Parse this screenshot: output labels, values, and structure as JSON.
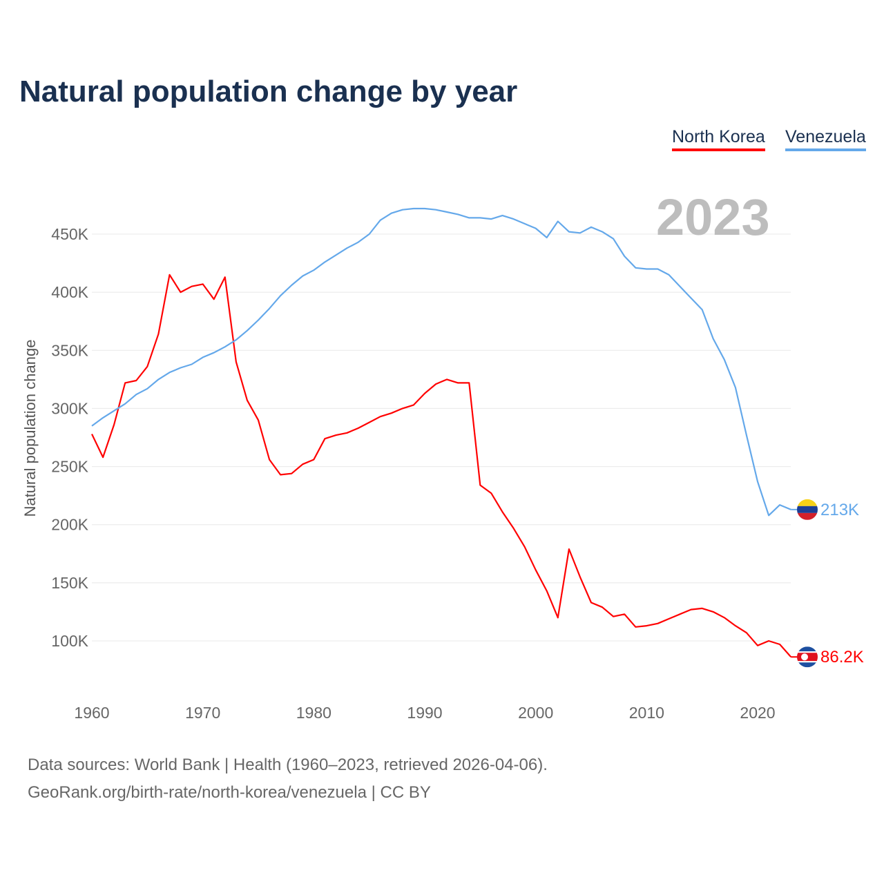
{
  "chart_data": {
    "type": "line",
    "title": "Natural population change by year",
    "xlabel": "",
    "ylabel": "Natural population change",
    "highlight_year": "2023",
    "xlim": [
      1960,
      2023
    ],
    "ylim": [
      60000,
      480000
    ],
    "grid": true,
    "legend_position": "top-right",
    "x_ticks": [
      1960,
      1970,
      1980,
      1990,
      2000,
      2010,
      2020
    ],
    "y_ticks": [
      100000,
      150000,
      200000,
      250000,
      300000,
      350000,
      400000,
      450000
    ],
    "y_tick_labels": [
      "100K",
      "150K",
      "200K",
      "250K",
      "300K",
      "350K",
      "400K",
      "450K"
    ],
    "x": [
      1960,
      1961,
      1962,
      1963,
      1964,
      1965,
      1966,
      1967,
      1968,
      1969,
      1970,
      1971,
      1972,
      1973,
      1974,
      1975,
      1976,
      1977,
      1978,
      1979,
      1980,
      1981,
      1982,
      1983,
      1984,
      1985,
      1986,
      1987,
      1988,
      1989,
      1990,
      1991,
      1992,
      1993,
      1994,
      1995,
      1996,
      1997,
      1998,
      1999,
      2000,
      2001,
      2002,
      2003,
      2004,
      2005,
      2006,
      2007,
      2008,
      2009,
      2010,
      2011,
      2012,
      2013,
      2014,
      2015,
      2016,
      2017,
      2018,
      2019,
      2020,
      2021,
      2022,
      2023
    ],
    "series": [
      {
        "name": "North Korea",
        "color": "#ff0000",
        "end_label": "86.2K",
        "flag": "north-korea-flag",
        "values": [
          278000,
          258000,
          286000,
          322000,
          324000,
          336000,
          364000,
          415000,
          400000,
          405000,
          407000,
          394000,
          413000,
          340000,
          307000,
          290000,
          256000,
          243000,
          244000,
          252000,
          256000,
          274000,
          277000,
          279000,
          283000,
          288000,
          293000,
          296000,
          300000,
          303000,
          313000,
          321000,
          325000,
          322000,
          322000,
          234000,
          227000,
          211000,
          197000,
          181000,
          161000,
          143000,
          120000,
          179000,
          155000,
          133000,
          129000,
          121000,
          123000,
          112000,
          113000,
          115000,
          119000,
          123000,
          127000,
          128000,
          125000,
          120000,
          113000,
          107000,
          96000,
          100000,
          97000,
          86200
        ]
      },
      {
        "name": "Venezuela",
        "color": "#64a8ea",
        "end_label": "213K",
        "flag": "venezuela-flag",
        "values": [
          285000,
          292000,
          298000,
          304000,
          312000,
          317000,
          325000,
          331000,
          335000,
          338000,
          344000,
          348000,
          353000,
          359000,
          367000,
          376000,
          386000,
          397000,
          406000,
          414000,
          419000,
          426000,
          432000,
          438000,
          443000,
          450000,
          462000,
          468000,
          471000,
          472000,
          472000,
          471000,
          469000,
          467000,
          464000,
          464000,
          463000,
          466000,
          463000,
          459000,
          455000,
          447000,
          461000,
          452000,
          451000,
          456000,
          452000,
          446000,
          431000,
          421000,
          420000,
          420000,
          415000,
          405000,
          395000,
          385000,
          360000,
          342000,
          318000,
          277000,
          237000,
          208000,
          217000,
          213000
        ]
      }
    ]
  },
  "source_line1": "Data sources: World Bank | Health (1960–2023, retrieved 2026-04-06).",
  "source_line2": "GeoRank.org/birth-rate/north-korea/venezuela | CC BY"
}
